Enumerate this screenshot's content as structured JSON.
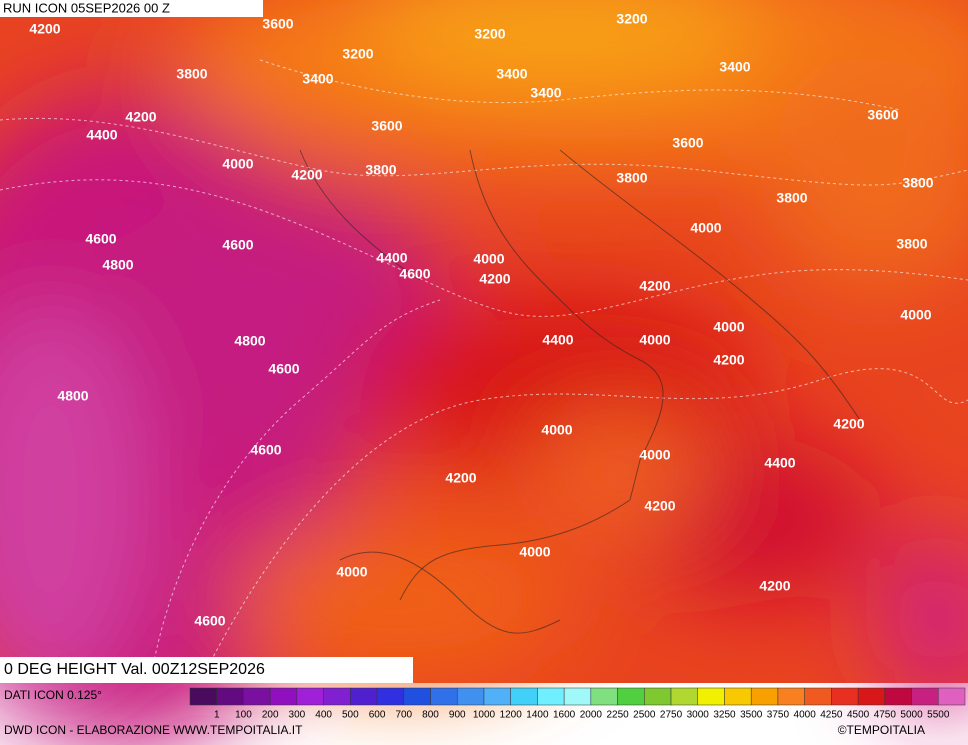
{
  "header": {
    "title": "RUN ICON 05SEP2026 00 Z"
  },
  "map": {
    "contour_labels": [
      "4200",
      "3600",
      "3200",
      "3200",
      "3200",
      "3800",
      "3400",
      "3400",
      "3400",
      "3400",
      "4200",
      "3600",
      "3600",
      "4400",
      "3600",
      "4000",
      "4200",
      "3800",
      "3800",
      "3800",
      "3800",
      "4000",
      "4600",
      "4600",
      "3800",
      "4800",
      "4400",
      "4000",
      "4600",
      "4200",
      "4200",
      "4000",
      "4000",
      "4800",
      "4400",
      "4000",
      "4200",
      "4600",
      "4800",
      "4200",
      "4000",
      "4600",
      "4000",
      "4400",
      "4200",
      "4200",
      "4000",
      "4000",
      "4200",
      "4600"
    ],
    "valid_label": "0 DEG HEIGHT Val. 00Z12SEP2026"
  },
  "legend": {
    "source": "DATI ICON 0.125°",
    "colors": [
      "#4a0a5e",
      "#640a80",
      "#7a10a0",
      "#9010c0",
      "#a020d8",
      "#8020d0",
      "#5020d0",
      "#3030e0",
      "#2050e0",
      "#3070e8",
      "#4090f0",
      "#50b0f8",
      "#40d0f8",
      "#70f0ff",
      "#a0f8f8",
      "#80e080",
      "#50d040",
      "#80c830",
      "#b0d830",
      "#f0f000",
      "#f8c800",
      "#f8a000",
      "#f88020",
      "#f05a20",
      "#e83020",
      "#d81818",
      "#c00840",
      "#c82080",
      "#e060c0"
    ],
    "labels": [
      "1",
      "100",
      "200",
      "300",
      "400",
      "500",
      "600",
      "700",
      "800",
      "900",
      "1000",
      "1200",
      "1400",
      "1600",
      "2000",
      "2250",
      "2500",
      "2750",
      "3000",
      "3250",
      "3500",
      "3750",
      "4000",
      "4250",
      "4500",
      "4750",
      "5000",
      "5500"
    ]
  },
  "footer": {
    "left": "DWD ICON - ELABORAZIONE WWW.TEMPOITALIA.IT",
    "right": "©TEMPOITALIA"
  }
}
